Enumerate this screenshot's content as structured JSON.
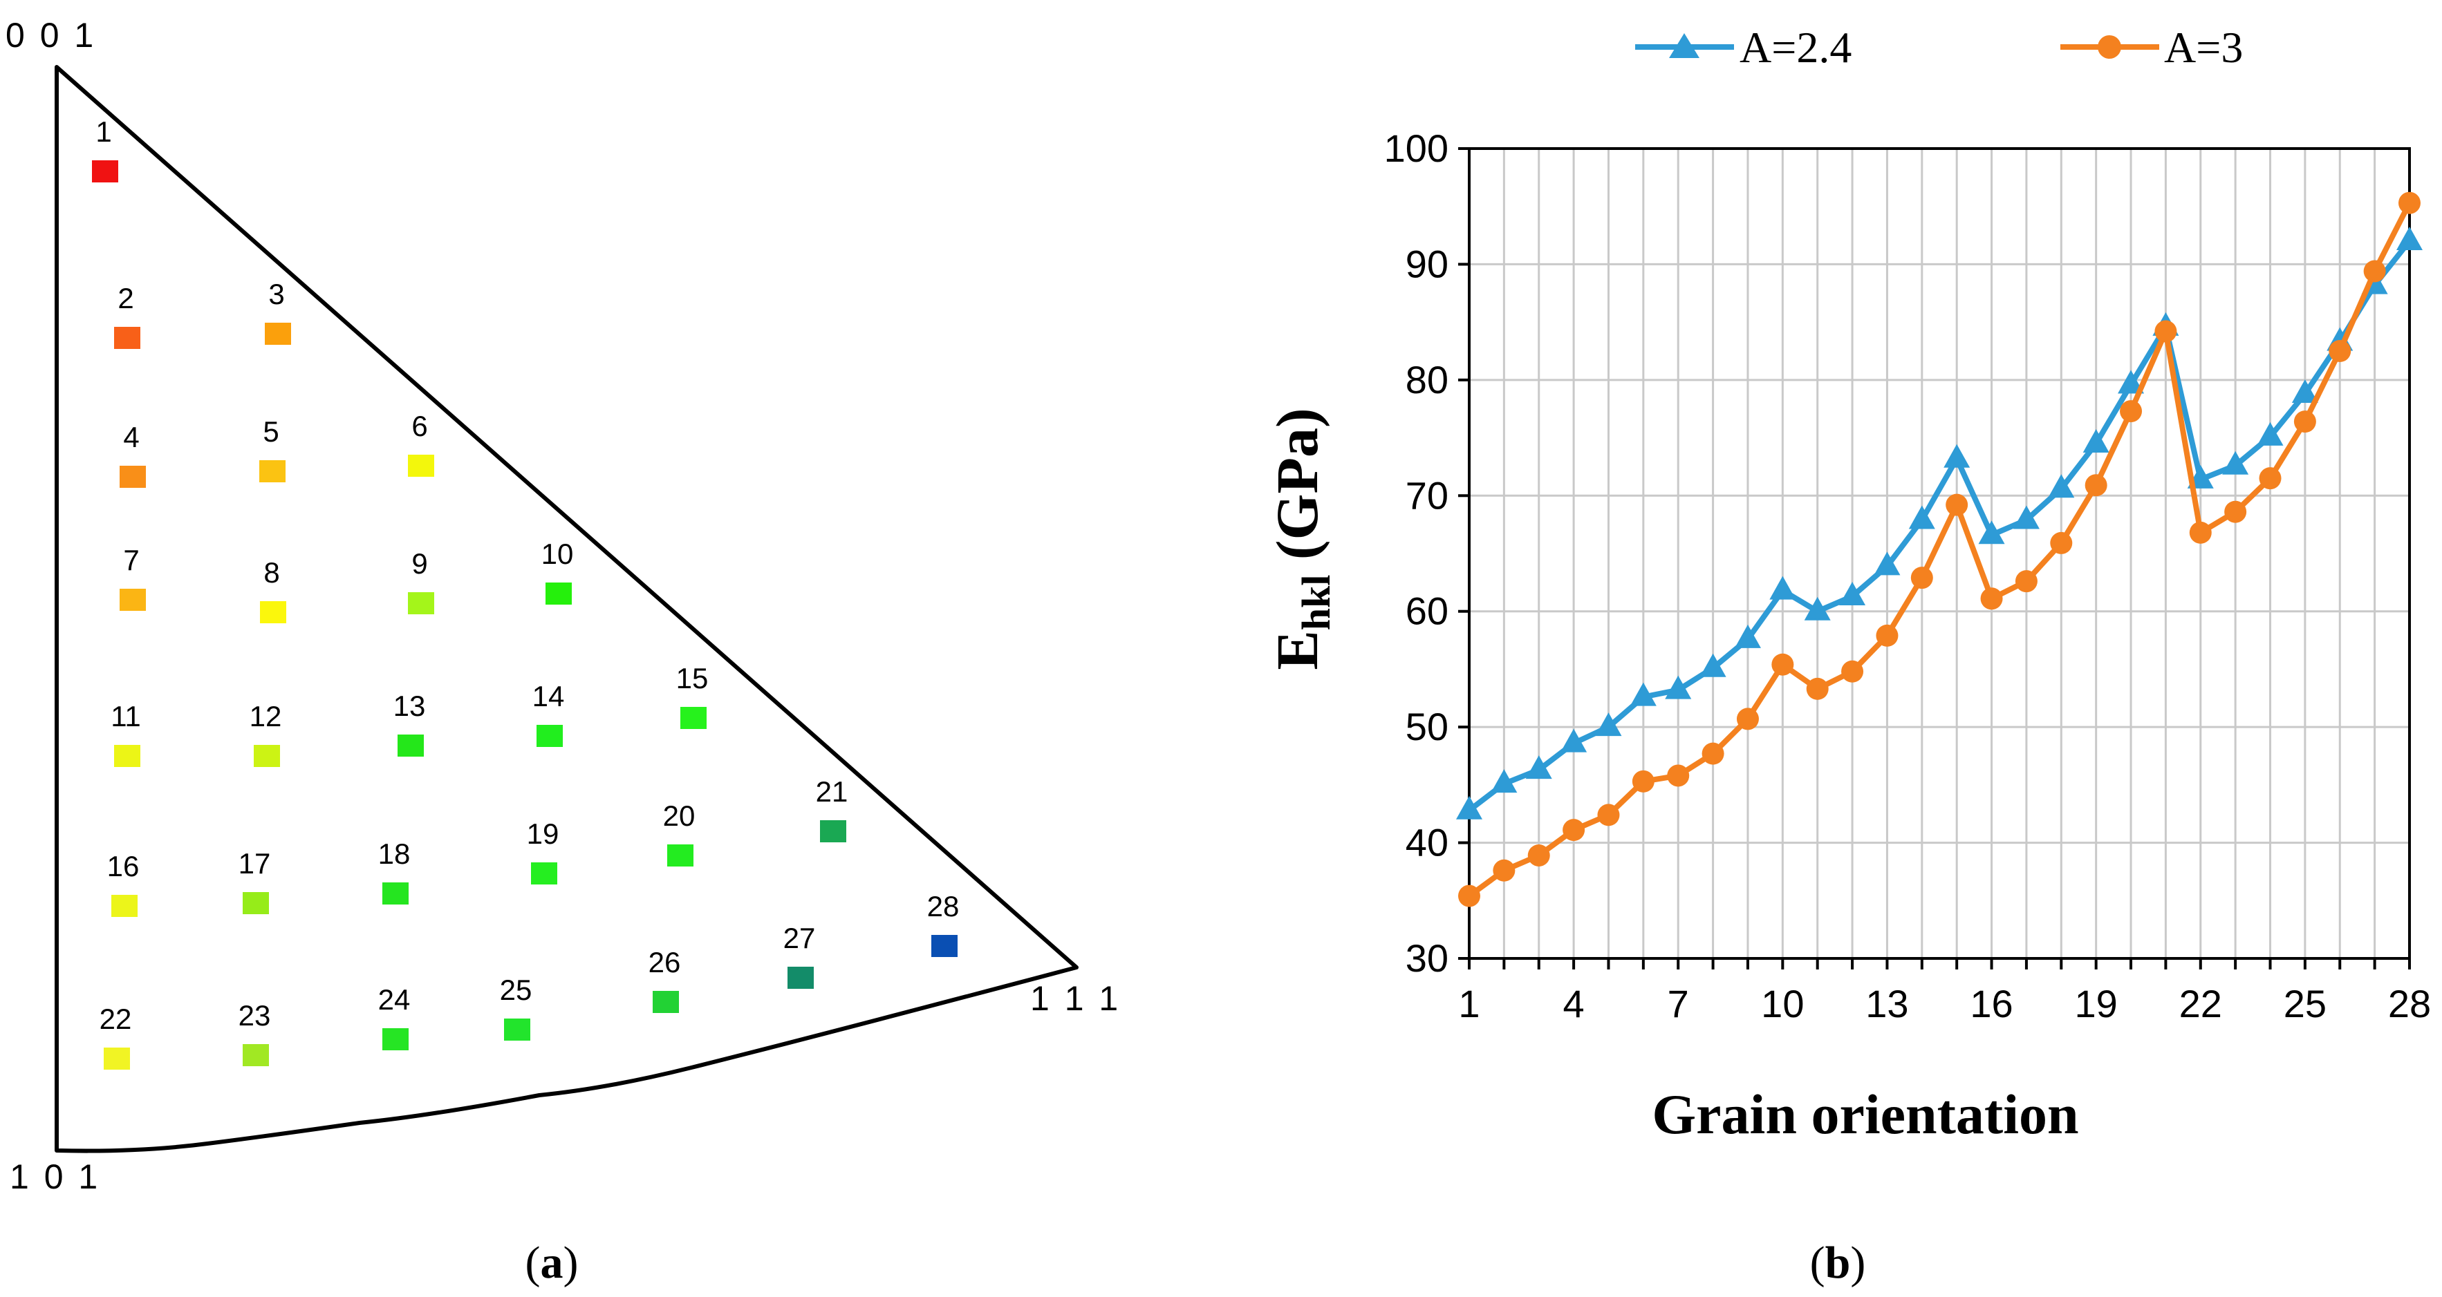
{
  "panel_a": {
    "caption_open": "(",
    "caption_letter": "a",
    "caption_close": ")",
    "corners": {
      "top": "0 0 1",
      "bottom_left": "1 0 1",
      "right": "1 1 1"
    },
    "grains": [
      {
        "id": "1",
        "color": "#f01212"
      },
      {
        "id": "2",
        "color": "#f86018"
      },
      {
        "id": "3",
        "color": "#fba00c"
      },
      {
        "id": "4",
        "color": "#f98f18"
      },
      {
        "id": "5",
        "color": "#fbc312"
      },
      {
        "id": "6",
        "color": "#f3f70c"
      },
      {
        "id": "7",
        "color": "#fbb514"
      },
      {
        "id": "8",
        "color": "#fbf70c"
      },
      {
        "id": "9",
        "color": "#a4f51a"
      },
      {
        "id": "10",
        "color": "#25f00c"
      },
      {
        "id": "11",
        "color": "#ecf516"
      },
      {
        "id": "12",
        "color": "#ccf314"
      },
      {
        "id": "13",
        "color": "#24e71a"
      },
      {
        "id": "14",
        "color": "#21ee1e"
      },
      {
        "id": "15",
        "color": "#26f21c"
      },
      {
        "id": "16",
        "color": "#ecf51a"
      },
      {
        "id": "17",
        "color": "#96ec19"
      },
      {
        "id": "18",
        "color": "#25e520"
      },
      {
        "id": "19",
        "color": "#25ee20"
      },
      {
        "id": "20",
        "color": "#23ec20"
      },
      {
        "id": "21",
        "color": "#1aa853"
      },
      {
        "id": "22",
        "color": "#f1f424"
      },
      {
        "id": "23",
        "color": "#a1e823"
      },
      {
        "id": "24",
        "color": "#26e524"
      },
      {
        "id": "25",
        "color": "#22e42c"
      },
      {
        "id": "26",
        "color": "#22d234"
      },
      {
        "id": "27",
        "color": "#138c69"
      },
      {
        "id": "28",
        "color": "#0a4fb3"
      }
    ]
  },
  "chart_data": {
    "type": "line",
    "title": "",
    "xlabel": "Grain orientation",
    "ylabel_main": "E",
    "ylabel_sub": "hkl",
    "ylabel_rest": " (GPa)",
    "ylim": [
      30,
      100
    ],
    "xlim": [
      1,
      28
    ],
    "yticks": [
      "30",
      "40",
      "50",
      "60",
      "70",
      "80",
      "90",
      "100"
    ],
    "xticks": [
      "1",
      "4",
      "7",
      "10",
      "13",
      "16",
      "19",
      "22",
      "25",
      "28"
    ],
    "xtick_values": [
      1,
      4,
      7,
      10,
      13,
      16,
      19,
      22,
      25,
      28
    ],
    "grid": true,
    "legend_position": "top",
    "x": [
      1,
      2,
      3,
      4,
      5,
      6,
      7,
      8,
      9,
      10,
      11,
      12,
      13,
      14,
      15,
      16,
      17,
      18,
      19,
      20,
      21,
      22,
      23,
      24,
      25,
      26,
      27,
      28
    ],
    "series": [
      {
        "name": "A=2.4",
        "color": "#2e9bd6",
        "marker": "triangle",
        "values": [
          42.8,
          45.1,
          46.3,
          48.6,
          50.0,
          52.6,
          53.2,
          55.1,
          57.6,
          61.8,
          60.0,
          61.3,
          63.9,
          67.9,
          73.2,
          66.6,
          67.9,
          70.6,
          74.5,
          79.6,
          84.6,
          71.4,
          72.6,
          75.1,
          78.8,
          83.3,
          88.2,
          92.0
        ]
      },
      {
        "name": "A=3",
        "color": "#f4811f",
        "marker": "circle",
        "values": [
          35.4,
          37.6,
          38.9,
          41.1,
          42.4,
          45.3,
          45.8,
          47.7,
          50.7,
          55.4,
          53.3,
          54.8,
          57.9,
          62.9,
          69.2,
          61.1,
          62.6,
          65.9,
          70.9,
          77.3,
          84.2,
          66.8,
          68.6,
          71.5,
          76.4,
          82.5,
          89.4,
          95.3
        ]
      }
    ]
  },
  "panel_b": {
    "caption_open": "(",
    "caption_letter": "b",
    "caption_close": ")"
  }
}
